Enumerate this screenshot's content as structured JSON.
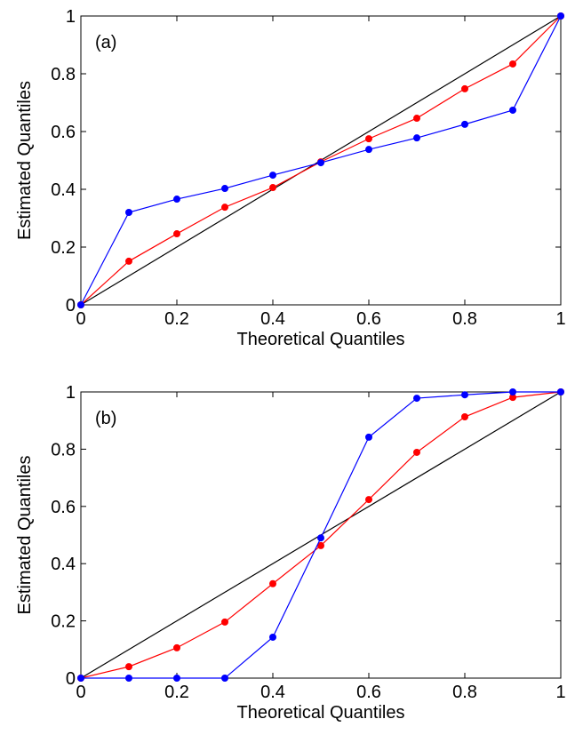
{
  "chart_data": [
    {
      "type": "line",
      "annotation": "(a)",
      "xlabel": "Theoretical Quantiles",
      "ylabel": "Estimated Quantiles",
      "xlim": [
        0,
        1
      ],
      "ylim": [
        0,
        1
      ],
      "xticks": [
        0,
        0.2,
        0.4,
        0.6,
        0.8,
        1
      ],
      "yticks": [
        0,
        0.2,
        0.4,
        0.6,
        0.8,
        1
      ],
      "series": [
        {
          "color": "#000000",
          "markers": false,
          "x": [
            0,
            1
          ],
          "values": [
            0,
            1
          ]
        },
        {
          "color": "#ff0000",
          "markers": true,
          "x": [
            0,
            0.1,
            0.2,
            0.3,
            0.4,
            0.5,
            0.6,
            0.7,
            0.8,
            0.9,
            1
          ],
          "values": [
            0,
            0.151,
            0.246,
            0.338,
            0.406,
            0.495,
            0.575,
            0.646,
            0.748,
            0.834,
            1
          ]
        },
        {
          "color": "#0000ff",
          "markers": true,
          "x": [
            0,
            0.1,
            0.2,
            0.3,
            0.4,
            0.5,
            0.6,
            0.7,
            0.8,
            0.9,
            1
          ],
          "values": [
            0,
            0.32,
            0.366,
            0.403,
            0.449,
            0.492,
            0.538,
            0.578,
            0.625,
            0.674,
            1
          ]
        }
      ]
    },
    {
      "type": "line",
      "annotation": "(b)",
      "xlabel": "Theoretical Quantiles",
      "ylabel": "Estimated Quantiles",
      "xlim": [
        0,
        1
      ],
      "ylim": [
        0,
        1
      ],
      "xticks": [
        0,
        0.2,
        0.4,
        0.6,
        0.8,
        1
      ],
      "yticks": [
        0,
        0.2,
        0.4,
        0.6,
        0.8,
        1
      ],
      "series": [
        {
          "color": "#000000",
          "markers": false,
          "x": [
            0,
            1
          ],
          "values": [
            0,
            1
          ]
        },
        {
          "color": "#ff0000",
          "markers": true,
          "x": [
            0,
            0.1,
            0.2,
            0.3,
            0.4,
            0.5,
            0.6,
            0.7,
            0.8,
            0.9,
            1
          ],
          "values": [
            0,
            0.04,
            0.106,
            0.196,
            0.33,
            0.463,
            0.624,
            0.789,
            0.913,
            0.981,
            1
          ]
        },
        {
          "color": "#0000ff",
          "markers": true,
          "x": [
            0,
            0.1,
            0.2,
            0.3,
            0.4,
            0.5,
            0.6,
            0.7,
            0.8,
            0.9,
            1
          ],
          "values": [
            0,
            0,
            0,
            0,
            0.143,
            0.49,
            0.842,
            0.978,
            0.99,
            1,
            1
          ]
        }
      ]
    }
  ]
}
